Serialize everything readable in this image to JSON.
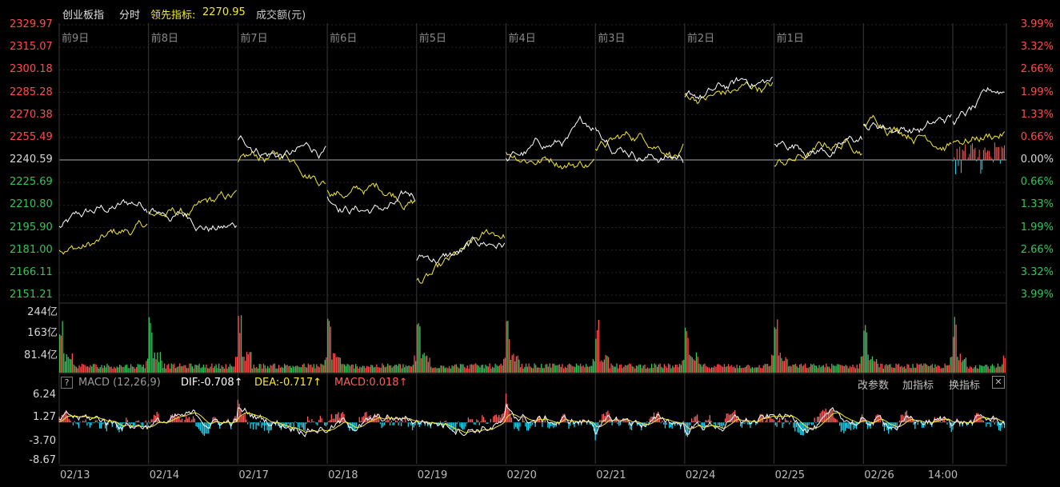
{
  "header": {
    "index_name": "创业板指",
    "mode": "分时",
    "lead_indicator_label": "领先指标:",
    "lead_indicator_value": "2270.95",
    "volume_label": "成交额(元)"
  },
  "price_axis": {
    "left_ticks": [
      "2329.97",
      "2315.07",
      "2300.18",
      "2285.28",
      "2270.38",
      "2255.49",
      "2240.59",
      "2225.69",
      "2210.80",
      "2195.90",
      "2181.00",
      "2166.11",
      "2151.21"
    ],
    "right_ticks": [
      "3.99%",
      "3.32%",
      "2.66%",
      "1.99%",
      "1.33%",
      "0.66%",
      "0.00%",
      "0.66%",
      "1.33%",
      "1.99%",
      "2.66%",
      "3.32%",
      "3.99%"
    ],
    "baseline": 2240.59,
    "colors": {
      "up": "#ff4d4d",
      "down": "#36c45a",
      "neutral": "#d8d8d8"
    }
  },
  "day_labels": [
    "前9日",
    "前8日",
    "前7日",
    "前6日",
    "前5日",
    "前4日",
    "前3日",
    "前2日",
    "前1日"
  ],
  "volume_axis": {
    "ticks": [
      "244亿",
      "163亿",
      "81.4亿"
    ]
  },
  "macd": {
    "name": "MACD (12,26,9)",
    "dif_label": "DIF:-0.708↑",
    "dea_label": "DEA:-0.717↑",
    "macd_label": "MACD:0.018↑",
    "ticks": [
      "6.24",
      "1.27",
      "-3.70",
      "-8.67"
    ],
    "buttons": {
      "change_params": "改参数",
      "add_indicator": "加指标",
      "switch_indicator": "换指标",
      "close": "✕"
    },
    "help": "?"
  },
  "x_axis": {
    "labels": [
      "02/13",
      "02/14",
      "02/17",
      "02/18",
      "02/19",
      "02/20",
      "02/21",
      "02/24",
      "02/25",
      "02/26",
      "14:00"
    ]
  },
  "series_colors": {
    "price": "#ffffff",
    "lead": "#f5e83a",
    "macd_pos": "#ff5f5f",
    "macd_neg": "#22d3ee",
    "grid": "#3a3a3a",
    "grid_minor": "#262626"
  }
}
